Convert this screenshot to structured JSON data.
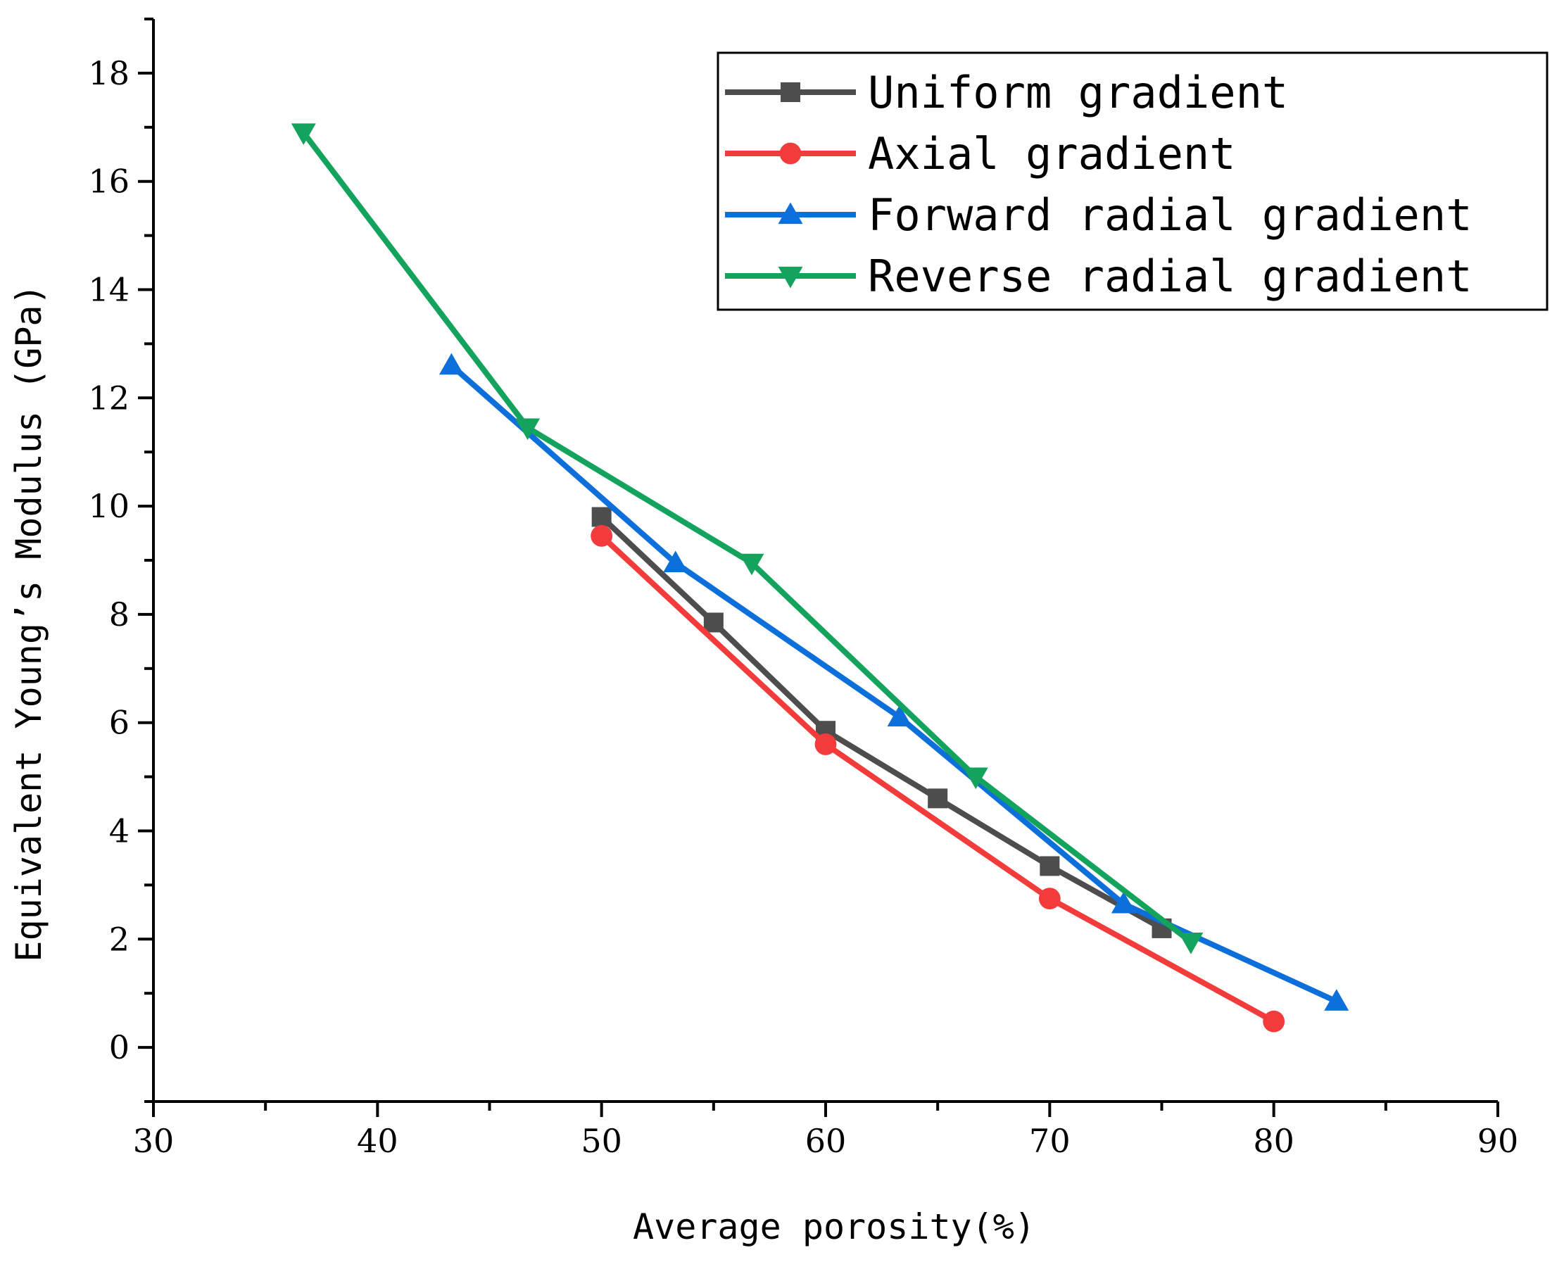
{
  "chart_data": {
    "type": "line",
    "xlabel": "Average porosity(%)",
    "ylabel": "Equivalent Young’s Modulus (GPa)",
    "xlim": [
      30,
      90
    ],
    "ylim": [
      -1,
      19
    ],
    "xticks": [
      "30",
      "40",
      "50",
      "60",
      "70",
      "80",
      "90"
    ],
    "yticks": [
      "0",
      "2",
      "4",
      "6",
      "8",
      "10",
      "12",
      "14",
      "16",
      "18"
    ],
    "grid": false,
    "legend_position": "top-right",
    "series": [
      {
        "name": "Uniform gradient",
        "color": "#4d4d4d",
        "marker": "square",
        "x": [
          50,
          55,
          60,
          65,
          70,
          75
        ],
        "y": [
          9.8,
          7.85,
          5.85,
          4.6,
          3.35,
          2.2
        ]
      },
      {
        "name": "Axial gradient",
        "color": "#f23c3c",
        "marker": "circle",
        "x": [
          50,
          60,
          70,
          80
        ],
        "y": [
          9.45,
          5.6,
          2.75,
          0.48
        ]
      },
      {
        "name": "Forward radial gradient",
        "color": "#0d6fd9",
        "marker": "triangle-up",
        "x": [
          43.3,
          53.3,
          63.3,
          73.3,
          82.8
        ],
        "y": [
          12.6,
          8.95,
          6.1,
          2.65,
          0.85
        ]
      },
      {
        "name": "Reverse radial gradient",
        "color": "#13a35c",
        "marker": "triangle-down",
        "x": [
          36.7,
          46.7,
          56.7,
          66.7,
          76.3
        ],
        "y": [
          16.9,
          11.45,
          8.95,
          5.0,
          1.95
        ]
      }
    ]
  }
}
